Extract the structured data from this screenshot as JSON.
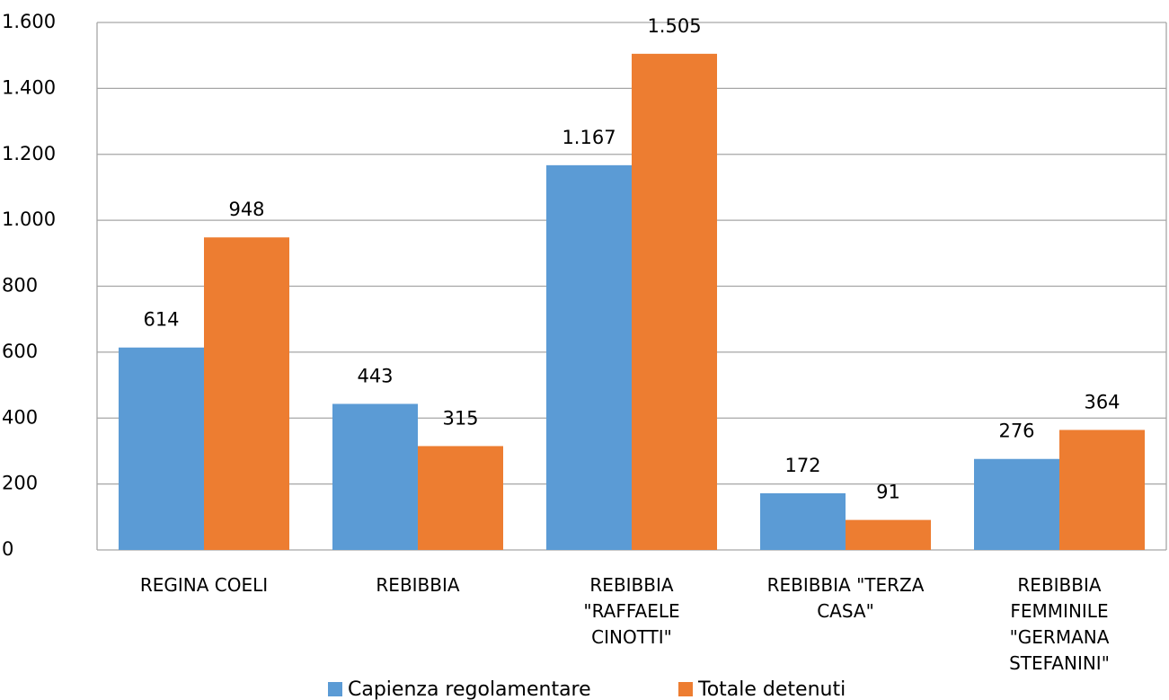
{
  "chart_data": {
    "type": "bar",
    "categories": [
      "REGINA COELI",
      "REBIBBIA",
      "REBIBBIA \"RAFFAELE CINOTTI\"",
      "REBIBBIA \"TERZA CASA\"",
      "REBIBBIA FEMMINILE \"GERMANA STEFANINI\""
    ],
    "series": [
      {
        "name": "Capienza regolamentare",
        "color": "#5b9bd5",
        "values": [
          614,
          443,
          1167,
          172,
          276
        ],
        "value_labels": [
          "614",
          "443",
          "1.167",
          "172",
          "276"
        ]
      },
      {
        "name": "Totale detenuti",
        "color": "#ed7d31",
        "values": [
          948,
          315,
          1505,
          91,
          364
        ],
        "value_labels": [
          "948",
          "315",
          "1.505",
          "91",
          "364"
        ]
      }
    ],
    "ylim": [
      0,
      1600
    ],
    "yticks": [
      0,
      200,
      400,
      600,
      800,
      {
        "value": 1000,
        "label": "1.000"
      },
      {
        "value": 1200,
        "label": "1.200"
      },
      {
        "value": 1400,
        "label": "1.400"
      },
      {
        "value": 1600,
        "label": "1.600"
      }
    ],
    "grid": true,
    "legend": "bottom"
  }
}
